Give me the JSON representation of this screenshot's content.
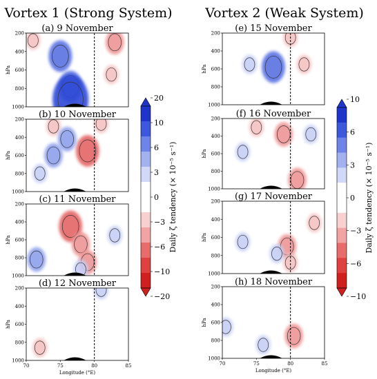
{
  "columns": [
    {
      "title": "Vortex 1 (Strong System)"
    },
    {
      "title": "Vortex 2 (Weak System)"
    }
  ],
  "colorbars": [
    {
      "label": "Daily ζ tendency (× 10⁻⁵ s⁻¹)",
      "ticks": [
        "20",
        "10",
        "6",
        "3",
        "0",
        "−3",
        "−6",
        "−10",
        "−20"
      ],
      "colors": [
        "#1f35c9",
        "#3d58dd",
        "#6f84e8",
        "#a3b1f0",
        "#d2d8f8",
        "#ffffff",
        "#ffffff",
        "#f8d0d0",
        "#f2a3a3",
        "#e96c6c",
        "#df4040",
        "#cf1f1f"
      ]
    },
    {
      "label": "Daily ζ tendency (× 10⁻⁵ s⁻¹)",
      "ticks": [
        "10",
        "6",
        "3",
        "0",
        "−3",
        "−6",
        "−10"
      ],
      "colors": [
        "#1f35c9",
        "#3d58dd",
        "#6f84e8",
        "#a3b1f0",
        "#d2d8f8",
        "#ffffff",
        "#ffffff",
        "#f8d0d0",
        "#f2a3a3",
        "#e96c6c",
        "#df4040",
        "#cf1f1f"
      ]
    }
  ],
  "axes": {
    "ylabel": "hPa",
    "xlabel": "Longitude (°E)",
    "xticks": [
      "70",
      "75",
      "80",
      "85"
    ],
    "yticks": [
      "200",
      "400",
      "600",
      "800",
      "1000"
    ]
  },
  "chart_data": [
    {
      "type": "heatmap",
      "panel": "(a) 9 November",
      "system": "Vortex 1",
      "x": [
        70,
        85
      ],
      "y": [
        200,
        1000
      ],
      "dashed_line_lon": 80,
      "blobs": [
        {
          "sign": "positive",
          "lon": 75,
          "p": 450,
          "level": 10
        },
        {
          "sign": "positive",
          "lon": 76.5,
          "p": 780,
          "level": 10
        },
        {
          "sign": "positive",
          "lon": 76.5,
          "p": 920,
          "level": 20
        },
        {
          "sign": "negative",
          "lon": 83,
          "p": 300,
          "level": -6
        },
        {
          "sign": "negative",
          "lon": 82.5,
          "p": 650,
          "level": -3
        },
        {
          "sign": "negative",
          "lon": 71,
          "p": 280,
          "level": -3
        }
      ]
    },
    {
      "type": "heatmap",
      "panel": "(b) 10 November",
      "system": "Vortex 1",
      "x": [
        70,
        85
      ],
      "y": [
        200,
        1000
      ],
      "dashed_line_lon": 80,
      "blobs": [
        {
          "sign": "negative",
          "lon": 79,
          "p": 550,
          "level": -10
        },
        {
          "sign": "negative",
          "lon": 74,
          "p": 280,
          "level": -3
        },
        {
          "sign": "negative",
          "lon": 81,
          "p": 250,
          "level": -3
        },
        {
          "sign": "positive",
          "lon": 76,
          "p": 420,
          "level": 6
        },
        {
          "sign": "positive",
          "lon": 74,
          "p": 600,
          "level": 6
        },
        {
          "sign": "positive",
          "lon": 72,
          "p": 800,
          "level": 3
        }
      ]
    },
    {
      "type": "heatmap",
      "panel": "(c) 11 November",
      "system": "Vortex 1",
      "x": [
        70,
        85
      ],
      "y": [
        200,
        1000
      ],
      "dashed_line_lon": 80,
      "blobs": [
        {
          "sign": "negative",
          "lon": 76.5,
          "p": 450,
          "level": -10
        },
        {
          "sign": "negative",
          "lon": 78,
          "p": 650,
          "level": -6
        },
        {
          "sign": "negative",
          "lon": 79,
          "p": 850,
          "level": -6
        },
        {
          "sign": "positive",
          "lon": 71.5,
          "p": 820,
          "level": 6
        },
        {
          "sign": "positive",
          "lon": 78,
          "p": 930,
          "level": 3
        },
        {
          "sign": "positive",
          "lon": 83,
          "p": 550,
          "level": 3
        }
      ]
    },
    {
      "type": "heatmap",
      "panel": "(d) 12 November",
      "system": "Vortex 1",
      "x": [
        70,
        85
      ],
      "y": [
        200,
        1000
      ],
      "dashed_line_lon": 80,
      "blobs": [
        {
          "sign": "negative",
          "lon": 72,
          "p": 860,
          "level": -3
        },
        {
          "sign": "positive",
          "lon": 81,
          "p": 220,
          "level": 3
        }
      ]
    },
    {
      "type": "heatmap",
      "panel": "(e) 15 November",
      "system": "Vortex 2",
      "x": [
        70,
        85
      ],
      "y": [
        200,
        1000
      ],
      "dashed_line_lon": 80,
      "blobs": [
        {
          "sign": "positive",
          "lon": 77.5,
          "p": 580,
          "level": 10
        },
        {
          "sign": "positive",
          "lon": 74,
          "p": 550,
          "level": 3
        },
        {
          "sign": "negative",
          "lon": 80,
          "p": 250,
          "level": -3
        },
        {
          "sign": "negative",
          "lon": 82,
          "p": 550,
          "level": -3
        }
      ]
    },
    {
      "type": "heatmap",
      "panel": "(f) 16 November",
      "system": "Vortex 2",
      "x": [
        70,
        85
      ],
      "y": [
        200,
        1000
      ],
      "dashed_line_lon": 80,
      "blobs": [
        {
          "sign": "negative",
          "lon": 79,
          "p": 380,
          "level": -6
        },
        {
          "sign": "negative",
          "lon": 75,
          "p": 300,
          "level": -3
        },
        {
          "sign": "negative",
          "lon": 81,
          "p": 900,
          "level": -6
        },
        {
          "sign": "positive",
          "lon": 83,
          "p": 380,
          "level": 3
        },
        {
          "sign": "positive",
          "lon": 73,
          "p": 580,
          "level": 3
        }
      ]
    },
    {
      "type": "heatmap",
      "panel": "(g) 17 November",
      "system": "Vortex 2",
      "x": [
        70,
        85
      ],
      "y": [
        200,
        1000
      ],
      "dashed_line_lon": 80,
      "blobs": [
        {
          "sign": "negative",
          "lon": 79.5,
          "p": 700,
          "level": -6
        },
        {
          "sign": "negative",
          "lon": 80,
          "p": 880,
          "level": -3
        },
        {
          "sign": "negative",
          "lon": 83.5,
          "p": 440,
          "level": -3
        },
        {
          "sign": "positive",
          "lon": 73,
          "p": 650,
          "level": 3
        },
        {
          "sign": "positive",
          "lon": 78,
          "p": 780,
          "level": 3
        }
      ]
    },
    {
      "type": "heatmap",
      "panel": "(h) 18 November",
      "system": "Vortex 2",
      "x": [
        70,
        85
      ],
      "y": [
        200,
        1000
      ],
      "dashed_line_lon": 80,
      "blobs": [
        {
          "sign": "negative",
          "lon": 80.5,
          "p": 750,
          "level": -6
        },
        {
          "sign": "positive",
          "lon": 70.5,
          "p": 650,
          "level": 3
        },
        {
          "sign": "positive",
          "lon": 76,
          "p": 850,
          "level": 3
        }
      ]
    }
  ]
}
